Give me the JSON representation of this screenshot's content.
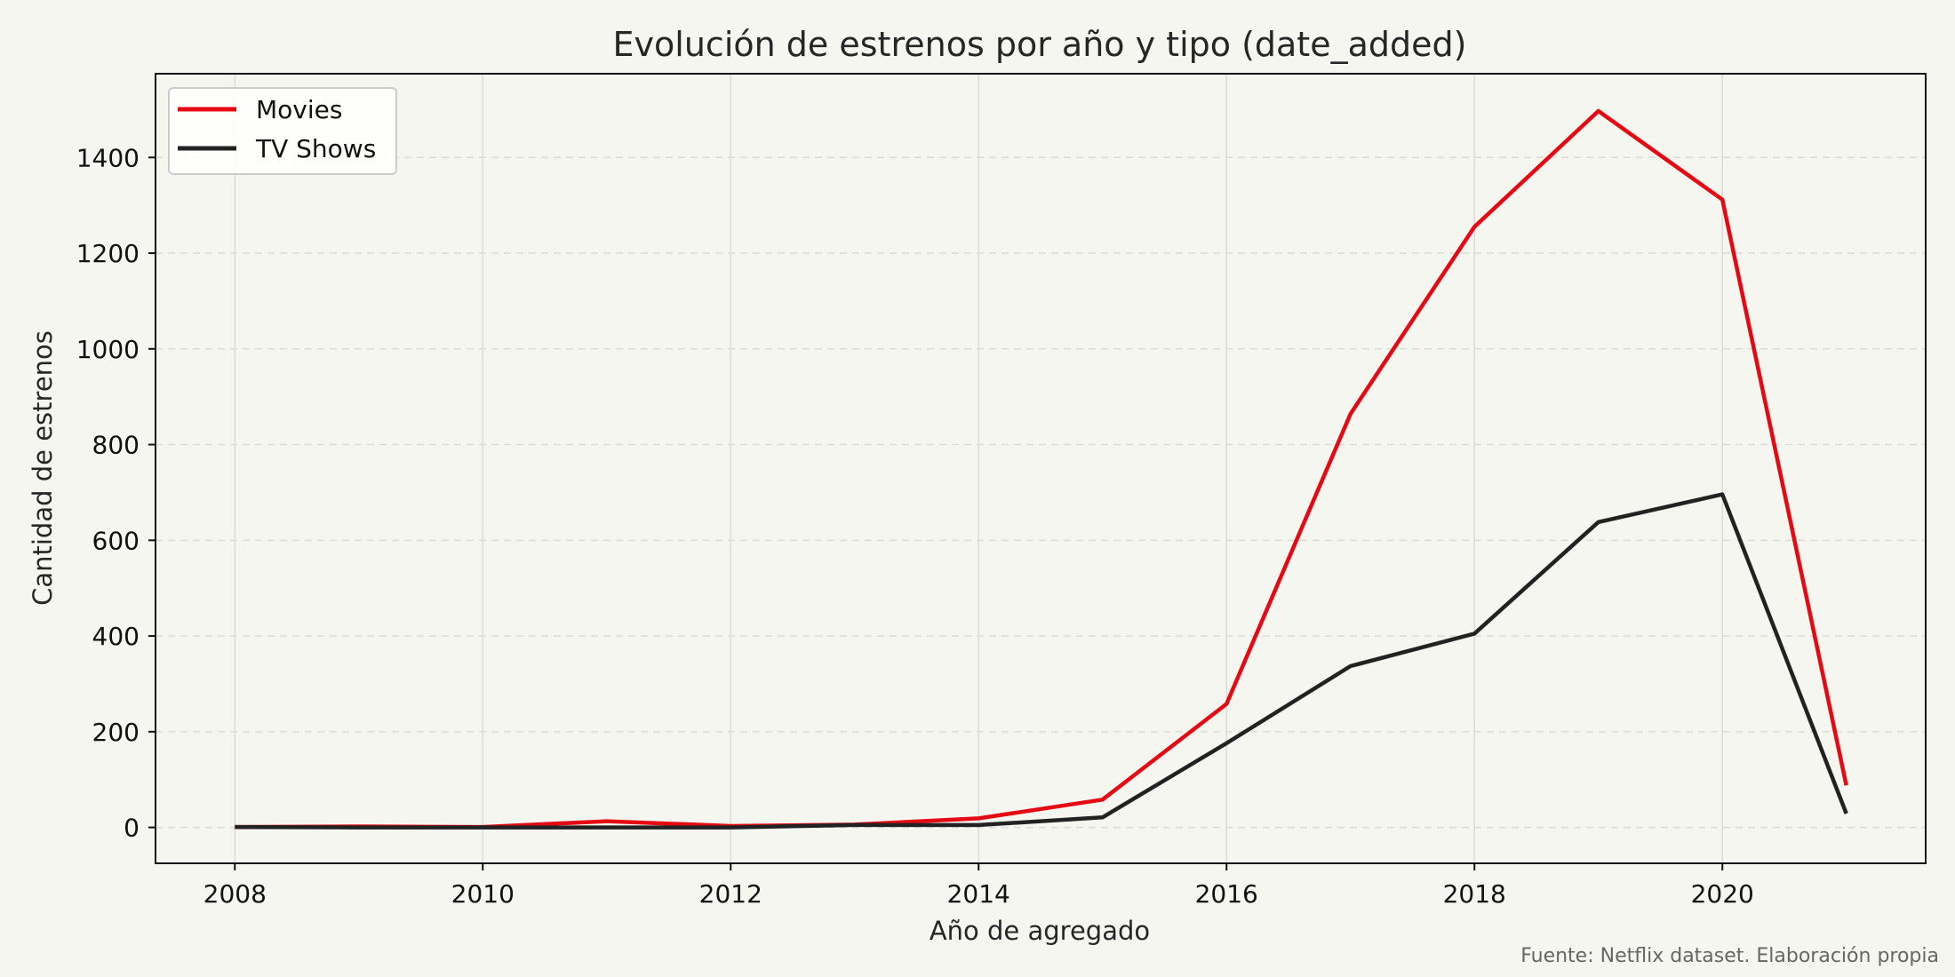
{
  "chart_data": {
    "type": "line",
    "title": "Evolución de estrenos por año y tipo (date_added)",
    "xlabel": "Año de agregado",
    "ylabel": "Cantidad de estrenos",
    "xlim": [
      2007.36,
      2021.64
    ],
    "ylim": [
      -75,
      1575
    ],
    "x_ticks": [
      2008,
      2010,
      2012,
      2014,
      2016,
      2018,
      2020
    ],
    "y_ticks": [
      0,
      200,
      400,
      600,
      800,
      1000,
      1200,
      1400
    ],
    "x": [
      2008,
      2009,
      2010,
      2011,
      2012,
      2013,
      2014,
      2015,
      2016,
      2017,
      2018,
      2019,
      2020,
      2021
    ],
    "series": [
      {
        "name": "Movies",
        "color": "#e50914",
        "values": [
          1,
          2,
          1,
          13,
          3,
          6,
          19,
          58,
          258,
          864,
          1255,
          1497,
          1312,
          88
        ]
      },
      {
        "name": "TV Shows",
        "color": "#222222",
        "values": [
          1,
          0,
          0,
          0,
          0,
          5,
          5,
          21,
          176,
          337,
          405,
          638,
          696,
          29
        ]
      }
    ],
    "grid": true,
    "legend": "upper-left",
    "source": "Fuente: Netflix dataset. Elaboración propia"
  }
}
